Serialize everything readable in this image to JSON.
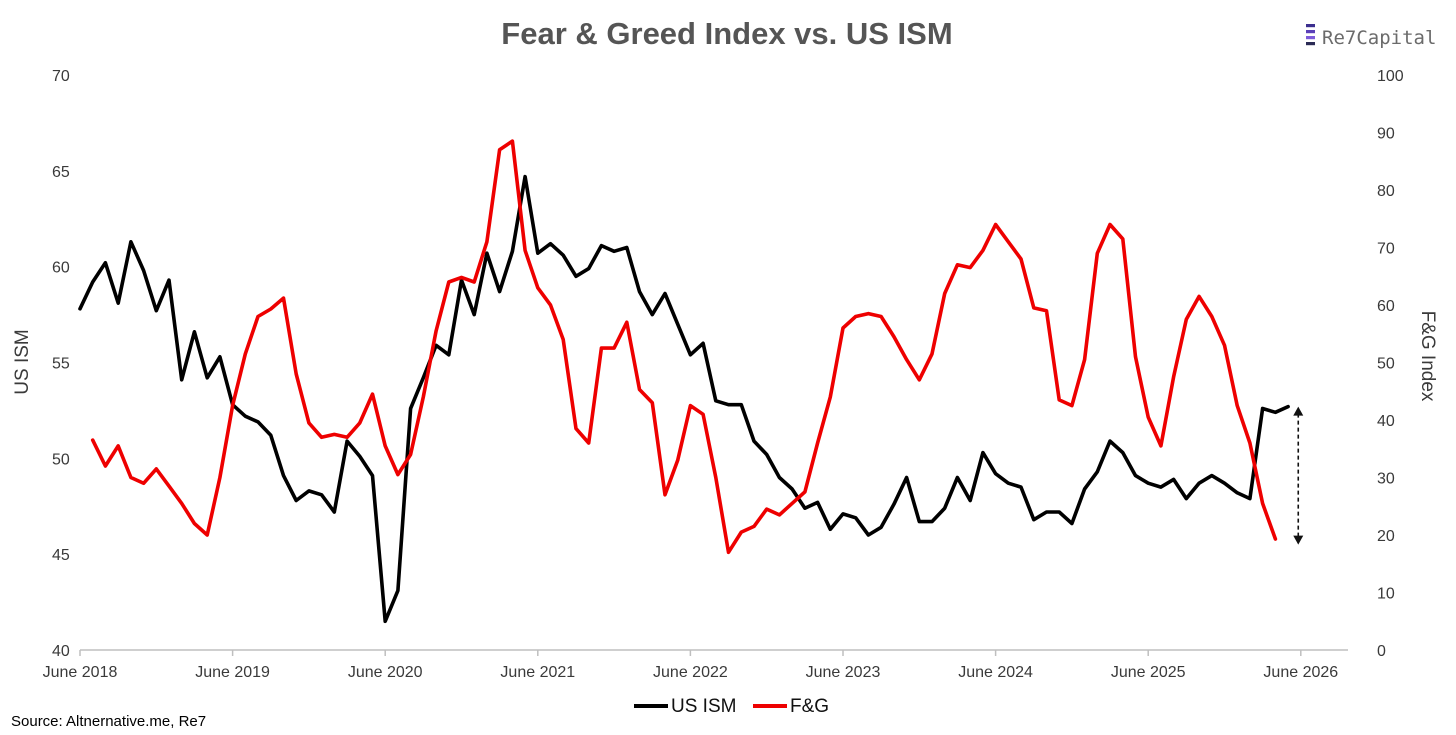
{
  "brand": {
    "name": "Re7Capital"
  },
  "source": "Source: Altnernative.me, Re7",
  "colors": {
    "ism": "#000000",
    "fg": "#ee0000",
    "axis": "#bfbfbf",
    "text": "#3a3a3a",
    "title": "#555555"
  },
  "chart_data": {
    "type": "line",
    "title": "Fear & Greed Index vs. US ISM",
    "xlabel": "",
    "ylabel": "US ISM",
    "y2label": "F&G Index",
    "x_tick_labels": [
      "June 2018",
      "June 2019",
      "June 2020",
      "June 2021",
      "June 2022",
      "June 2023",
      "June 2024",
      "June 2025",
      "June 2026"
    ],
    "x_range_months": [
      0,
      96
    ],
    "ylim": [
      40,
      70
    ],
    "y_ticks": [
      40,
      45,
      50,
      55,
      60,
      65,
      70
    ],
    "y2lim": [
      0,
      100
    ],
    "y2_ticks": [
      0,
      10,
      20,
      30,
      40,
      50,
      60,
      70,
      80,
      90,
      100
    ],
    "legend": [
      "US ISM",
      "F&G"
    ],
    "legend_position": "bottom-center",
    "series": [
      {
        "name": "US ISM",
        "axis": "left",
        "color": "#000000",
        "x": [
          0,
          1,
          2,
          3,
          4,
          5,
          6,
          7,
          8,
          9,
          10,
          11,
          12,
          13,
          14,
          15,
          16,
          17,
          18,
          19,
          20,
          21,
          22,
          23,
          24,
          25,
          26,
          27,
          28,
          29,
          30,
          31,
          32,
          33,
          34,
          35,
          36,
          37,
          38,
          39,
          40,
          41,
          42,
          43,
          44,
          45,
          46,
          47,
          48,
          49,
          50,
          51,
          52,
          53,
          54,
          55,
          56,
          57,
          58,
          59,
          60,
          61,
          62,
          63,
          64,
          65,
          66,
          67,
          68,
          69,
          70,
          71,
          72,
          73,
          74,
          75,
          76,
          77,
          78,
          79,
          80,
          81,
          82,
          83,
          84,
          85,
          86,
          87,
          88,
          89,
          90,
          91,
          92,
          93,
          94,
          95
        ],
        "values": [
          57.8,
          59.2,
          60.2,
          58.1,
          61.3,
          59.8,
          57.7,
          59.3,
          54.1,
          56.6,
          54.2,
          55.3,
          52.8,
          52.2,
          51.9,
          51.2,
          49.1,
          47.8,
          48.3,
          48.1,
          47.2,
          50.9,
          50.1,
          49.1,
          41.5,
          43.1,
          52.6,
          54.2,
          55.9,
          55.4,
          59.3,
          57.5,
          60.7,
          58.7,
          60.8,
          64.7,
          60.7,
          61.2,
          60.6,
          59.5,
          59.9,
          61.1,
          60.8,
          61.0,
          58.7,
          57.5,
          58.6,
          57.0,
          55.4,
          56.0,
          53.0,
          52.8,
          52.8,
          50.9,
          50.2,
          49.0,
          48.4,
          47.4,
          47.7,
          46.3,
          47.1,
          46.9,
          46.0,
          46.4,
          47.6,
          49.0,
          46.7,
          46.7,
          47.4,
          49.0,
          47.8,
          50.3,
          49.2,
          48.7,
          48.5,
          46.8,
          47.2,
          47.2,
          46.6,
          48.4,
          49.3,
          50.9,
          50.3,
          49.1,
          48.7,
          48.5,
          48.9,
          47.9,
          48.7,
          49.1,
          48.7,
          48.2,
          47.9,
          52.6,
          52.4,
          52.7
        ]
      },
      {
        "name": "F&G",
        "axis": "right",
        "color": "#ee0000",
        "x": [
          1,
          2,
          3,
          4,
          5,
          6,
          7,
          8,
          9,
          10,
          11,
          12,
          13,
          14,
          15,
          16,
          17,
          18,
          19,
          20,
          21,
          22,
          23,
          24,
          25,
          26,
          27,
          28,
          29,
          30,
          31,
          32,
          33,
          34,
          35,
          36,
          37,
          38,
          39,
          40,
          41,
          42,
          43,
          44,
          45,
          46,
          47,
          48,
          49,
          50,
          51,
          52,
          53,
          54,
          55,
          56,
          57,
          58,
          59,
          60,
          61,
          62,
          63,
          64,
          65,
          66,
          67,
          68,
          69,
          70,
          71,
          72,
          73,
          74,
          75,
          76,
          77,
          78,
          79,
          80,
          81,
          82,
          83,
          84,
          85,
          86,
          87,
          88,
          89,
          90,
          91,
          92,
          93,
          94
        ],
        "values": [
          36.5,
          32,
          35.5,
          30,
          29,
          31.5,
          28.5,
          25.5,
          22,
          20,
          30,
          42.5,
          51.5,
          58,
          59.3,
          61.2,
          48,
          39.5,
          37,
          37.5,
          37,
          39.5,
          44.5,
          35.5,
          30.5,
          34,
          44,
          55.5,
          64,
          64.8,
          64,
          71,
          87,
          88.5,
          69.5,
          63,
          60,
          54,
          38.5,
          36,
          52.5,
          52.5,
          57,
          45.3,
          43,
          27,
          33,
          42.5,
          41,
          30,
          17,
          20.5,
          21.5,
          24.5,
          23.5,
          25.5,
          27.5,
          36,
          44,
          56,
          58,
          58.5,
          58,
          54.5,
          50.5,
          47,
          51.5,
          62,
          67,
          66.5,
          69.5,
          74,
          71,
          68,
          59.5,
          59,
          43.5,
          42.5,
          50.5,
          69,
          74,
          71.5,
          51,
          40.5,
          35.5,
          47.5,
          57.5,
          61.5,
          58,
          53,
          42.5,
          36,
          25.5,
          19.3
        ]
      }
    ],
    "annotations": [
      {
        "type": "double-arrow",
        "x": 95.8,
        "y_from": 52.7,
        "y_to": 45.5,
        "style": "dashed"
      }
    ]
  }
}
